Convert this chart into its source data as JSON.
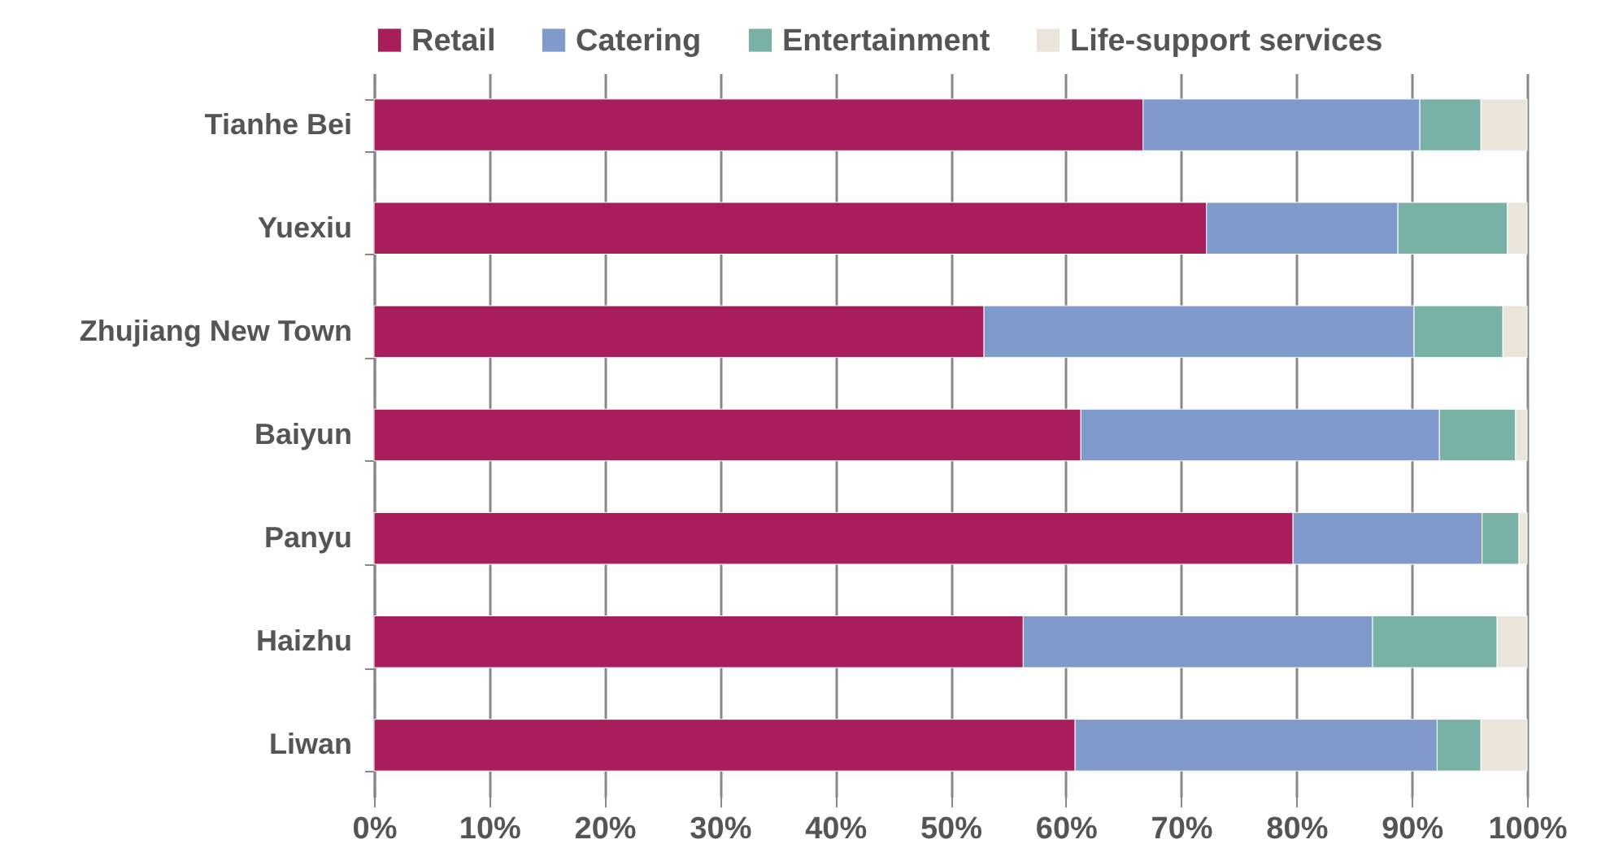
{
  "chart_data": {
    "type": "bar",
    "orientation": "horizontal",
    "stacked": true,
    "categories": [
      "Tianhe Bei",
      "Yuexiu",
      "Zhujiang New Town",
      "Baiyun",
      "Panyu",
      "Haizhu",
      "Liwan"
    ],
    "series": [
      {
        "name": "Retail",
        "color": "#a71e5a",
        "values": [
          66.7,
          72.2,
          52.9,
          61.3,
          79.7,
          56.3,
          60.8
        ]
      },
      {
        "name": "Catering",
        "color": "#7f9acb",
        "values": [
          24.0,
          16.6,
          37.3,
          31.1,
          16.4,
          30.3,
          31.4
        ]
      },
      {
        "name": "Entertainment",
        "color": "#7ab1a7",
        "values": [
          5.3,
          9.5,
          7.7,
          6.6,
          3.2,
          10.8,
          3.8
        ]
      },
      {
        "name": "Life-support services",
        "color": "#eae4db",
        "values": [
          4.0,
          1.7,
          2.1,
          1.0,
          0.7,
          2.6,
          4.0
        ]
      }
    ],
    "xlim": [
      0,
      100
    ],
    "xticks": [
      {
        "value": 0,
        "label": "0%"
      },
      {
        "value": 10,
        "label": "10%"
      },
      {
        "value": 20,
        "label": "20%"
      },
      {
        "value": 30,
        "label": "30%"
      },
      {
        "value": 40,
        "label": "40%"
      },
      {
        "value": 50,
        "label": "50%"
      },
      {
        "value": 60,
        "label": "60%"
      },
      {
        "value": 70,
        "label": "70%"
      },
      {
        "value": 80,
        "label": "80%"
      },
      {
        "value": 90,
        "label": "90%"
      },
      {
        "value": 100,
        "label": "100%"
      }
    ],
    "grid": "x",
    "legend": "top"
  }
}
